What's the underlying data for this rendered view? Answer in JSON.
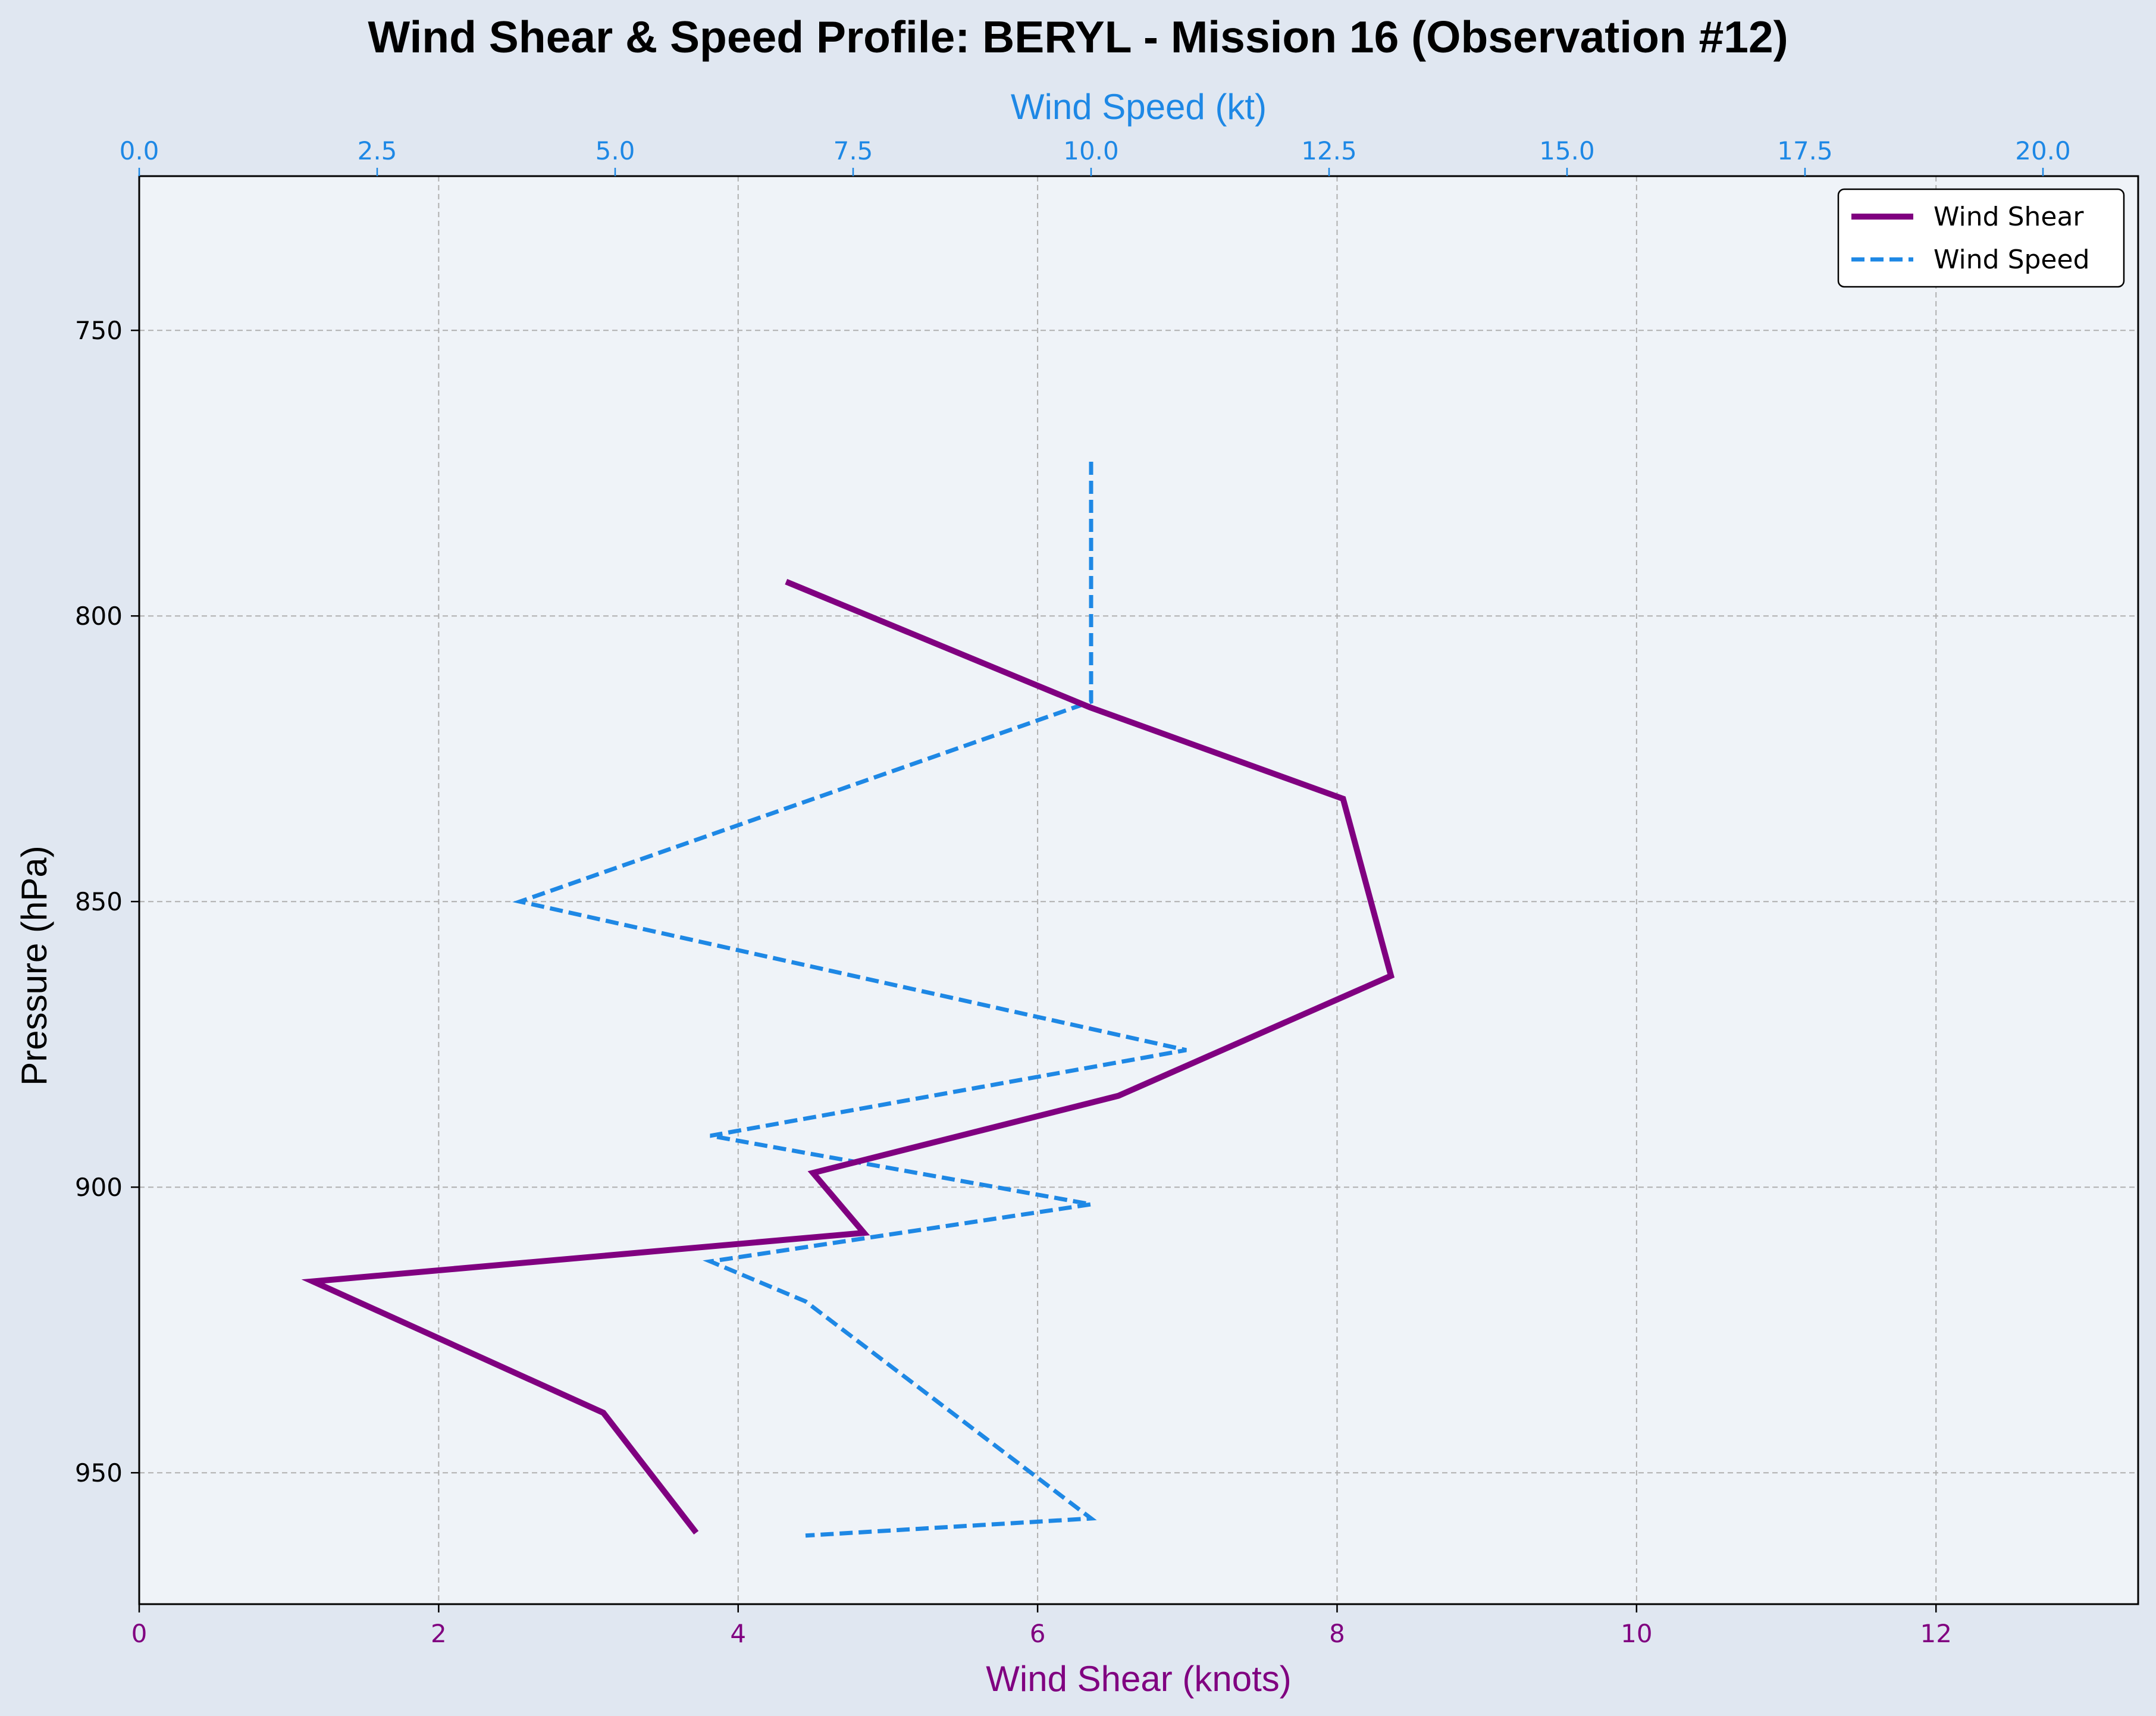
{
  "chart_data": {
    "type": "line",
    "title": "Wind Shear & Speed Profile: BERYL - Mission 16 (Observation #12)",
    "ylabel": "Pressure (hPa)",
    "xlabel_bottom": "Wind Shear (knots)",
    "xlabel_top": "Wind Speed (kt)",
    "y_inverted": true,
    "ylim": [
      973,
      723
    ],
    "yticks": [
      750,
      800,
      850,
      900,
      950
    ],
    "xlim_bottom": [
      0,
      13.35
    ],
    "xticks_bottom": [
      0,
      2,
      4,
      6,
      8,
      10,
      12
    ],
    "xlim_top": [
      0,
      21
    ],
    "xticks_top": [
      "0.0",
      "2.5",
      "5.0",
      "7.5",
      "10.0",
      "12.5",
      "15.0",
      "17.5",
      "20.0"
    ],
    "grid": true,
    "legend_position": "top-right",
    "colors": {
      "shear": "#800080",
      "speed": "#1e88e5",
      "tick_bottom": "#800080",
      "tick_top": "#1e88e5",
      "grid": "#b0b0b0",
      "plot_bg": "#eff3f8",
      "page_bg": "#e0e7f1"
    },
    "series": [
      {
        "name": "Wind Shear",
        "axis": "bottom",
        "style": "solid",
        "points": [
          {
            "x": 4.32,
            "y": 794
          },
          {
            "x": 6.35,
            "y": 816
          },
          {
            "x": 8.04,
            "y": 832
          },
          {
            "x": 8.36,
            "y": 863
          },
          {
            "x": 6.54,
            "y": 884
          },
          {
            "x": 4.5,
            "y": 897.5
          },
          {
            "x": 4.84,
            "y": 908
          },
          {
            "x": 1.16,
            "y": 916.5
          },
          {
            "x": 3.1,
            "y": 939.5
          },
          {
            "x": 3.72,
            "y": 960.5
          }
        ]
      },
      {
        "name": "Wind Speed",
        "axis": "top",
        "style": "dashed",
        "points": [
          {
            "x": 10.0,
            "y": 773
          },
          {
            "x": 10.0,
            "y": 815
          },
          {
            "x": 4.0,
            "y": 850
          },
          {
            "x": 11.0,
            "y": 876
          },
          {
            "x": 6.0,
            "y": 891
          },
          {
            "x": 10.0,
            "y": 903
          },
          {
            "x": 6.0,
            "y": 913
          },
          {
            "x": 7.0,
            "y": 920
          },
          {
            "x": 10.0,
            "y": 958
          },
          {
            "x": 7.0,
            "y": 961
          }
        ]
      }
    ]
  }
}
